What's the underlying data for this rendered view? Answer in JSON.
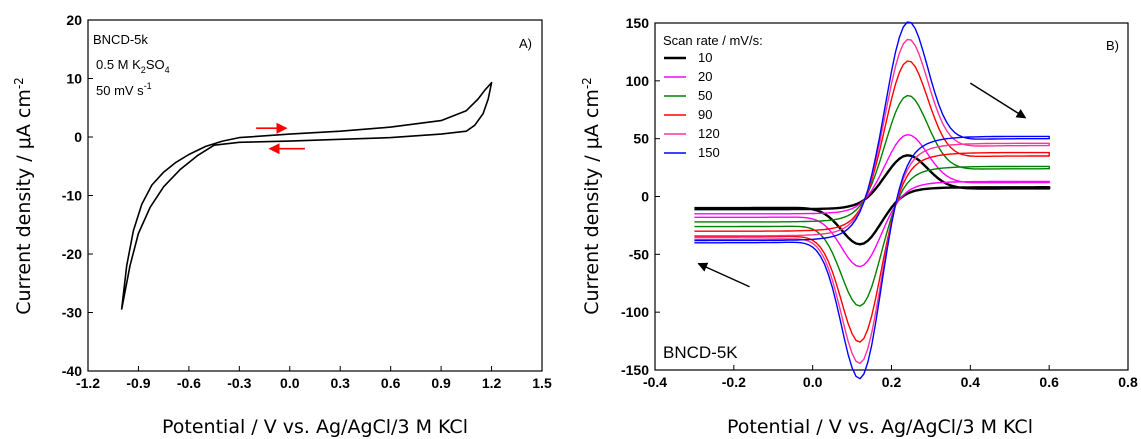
{
  "chart_data": [
    {
      "type": "line",
      "panel_label": "A)",
      "xlabel": "Potential / V vs. Ag/AgCl/3 M KCl",
      "ylabel": "Current density / μA cm",
      "ylabel_sup": "-2",
      "xlim": [
        -1.2,
        1.5
      ],
      "ylim": [
        -40,
        20
      ],
      "xticks": [
        "-1.2",
        "-0.9",
        "-0.6",
        "-0.3",
        "0.0",
        "0.3",
        "0.6",
        "0.9",
        "1.2",
        "1.5"
      ],
      "yticks": [
        "-40",
        "-30",
        "-20",
        "-10",
        "0",
        "10",
        "20"
      ],
      "annotations": {
        "sample": "BNCD-5k",
        "electrolyte_pre": "0.5 M K",
        "electrolyte_sub1": "2",
        "electrolyte_mid": "SO",
        "electrolyte_sub2": "4",
        "rate_pre": "50 mV s",
        "rate_sup": "-1"
      },
      "series": [
        {
          "color": "#000000",
          "x": [
            -1.0,
            -0.97,
            -0.93,
            -0.88,
            -0.82,
            -0.75,
            -0.68,
            -0.6,
            -0.5,
            -0.4,
            -0.3,
            0.0,
            0.3,
            0.6,
            0.9,
            1.05,
            1.12,
            1.16,
            1.2,
            1.18,
            1.15,
            1.1,
            1.05,
            0.9,
            0.6,
            0.3,
            0.0,
            -0.3,
            -0.45,
            -0.55,
            -0.65,
            -0.75,
            -0.83,
            -0.9,
            -0.95,
            -1.0
          ],
          "y": [
            -29.5,
            -22.0,
            -16.0,
            -11.5,
            -8.2,
            -6.0,
            -4.4,
            -3.0,
            -1.6,
            -0.7,
            -0.1,
            0.5,
            1.0,
            1.7,
            2.8,
            4.5,
            6.5,
            8.0,
            9.3,
            6.5,
            4.0,
            2.0,
            1.0,
            0.5,
            -0.1,
            -0.4,
            -0.7,
            -0.9,
            -1.4,
            -3.2,
            -5.5,
            -8.5,
            -12.0,
            -16.5,
            -22.0,
            -29.5
          ]
        }
      ],
      "arrows": [
        {
          "from": [
            -0.2,
            1.5
          ],
          "to": [
            -0.02,
            1.5
          ],
          "color": "#ff0000"
        },
        {
          "from": [
            0.09,
            -2.0
          ],
          "to": [
            -0.12,
            -2.0
          ],
          "color": "#ff0000"
        }
      ]
    },
    {
      "type": "line",
      "panel_label": "B)",
      "xlabel": "Potential / V vs. Ag/AgCl/3 M KCl",
      "ylabel": "Current density / μA cm",
      "ylabel_sup": "-2",
      "xlim": [
        -0.4,
        0.8
      ],
      "ylim": [
        -150,
        150
      ],
      "xticks": [
        "-0.4",
        "-0.2",
        "0.0",
        "0.2",
        "0.4",
        "0.6",
        "0.8"
      ],
      "yticks": [
        "-150",
        "-100",
        "-50",
        "0",
        "50",
        "100",
        "150"
      ],
      "sample_label": "BNCD-5K",
      "legend_title": "Scan rate / mV/s:",
      "legend_loc": "top-left",
      "series": [
        {
          "name": "10",
          "color": "#000000",
          "ipa": 32,
          "ipc": -37,
          "start": -11,
          "vend": 7,
          "vback": 8,
          "pre": -8,
          "cend": -10,
          "xmin": -0.3,
          "xmax": 0.6
        },
        {
          "name": "20",
          "color": "#ff00ff",
          "ipa": 48,
          "ipc": -53,
          "start": -15,
          "vend": 12,
          "vback": 13,
          "pre": -10,
          "cend": -18,
          "xmin": -0.3,
          "xmax": 0.6
        },
        {
          "name": "50",
          "color": "#008000",
          "ipa": 78,
          "ipc": -82,
          "start": -22,
          "vend": 24,
          "vback": 26,
          "pre": -14,
          "cend": -26,
          "xmin": -0.3,
          "xmax": 0.6
        },
        {
          "name": "90",
          "color": "#ff0000",
          "ipa": 104,
          "ipc": -108,
          "start": -30,
          "vend": 35,
          "vback": 38,
          "pre": -20,
          "cend": -35,
          "xmin": -0.3,
          "xmax": 0.6
        },
        {
          "name": "120",
          "color": "#ff3399",
          "ipa": 120,
          "ipc": -124,
          "start": -34,
          "vend": 44,
          "vback": 46,
          "pre": -24,
          "cend": -37,
          "xmin": -0.3,
          "xmax": 0.6
        },
        {
          "name": "150",
          "color": "#0000ff",
          "ipa": 133,
          "ipc": -135,
          "start": -38,
          "vend": 50,
          "vback": 52,
          "pre": -28,
          "cend": -40,
          "xmin": -0.3,
          "xmax": 0.6
        }
      ],
      "arrows": [
        {
          "from": [
            0.4,
            98
          ],
          "to": [
            0.54,
            68
          ],
          "color": "#000000"
        },
        {
          "from": [
            -0.16,
            -78
          ],
          "to": [
            -0.29,
            -58
          ],
          "color": "#000000"
        }
      ]
    }
  ]
}
